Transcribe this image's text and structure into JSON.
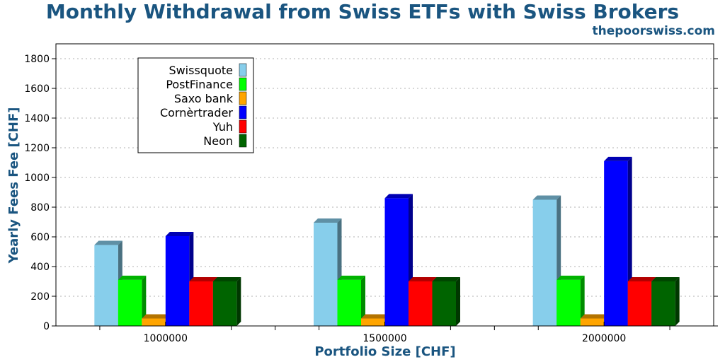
{
  "header": {
    "title": "Monthly Withdrawal from Swiss ETFs with Swiss Brokers",
    "site": "thepoorswiss.com"
  },
  "chart_data": {
    "type": "bar",
    "title": "Monthly Withdrawal from Swiss ETFs with Swiss Brokers",
    "xlabel": "Portfolio Size [CHF]",
    "ylabel": "Yearly Fees Fee [CHF]",
    "categories": [
      "1000000",
      "1500000",
      "2000000"
    ],
    "ylim": [
      0,
      1900
    ],
    "yticks": [
      0,
      200,
      400,
      600,
      800,
      1000,
      1200,
      1400,
      1600,
      1800
    ],
    "grid": true,
    "legend_position": "top-left",
    "series": [
      {
        "name": "Swissquote",
        "color": "#87ceeb",
        "values": [
          545,
          695,
          850
        ]
      },
      {
        "name": "PostFinance",
        "color": "#00ff00",
        "values": [
          310,
          310,
          310
        ]
      },
      {
        "name": "Saxo bank",
        "color": "#ffa500",
        "values": [
          50,
          50,
          50
        ]
      },
      {
        "name": "Cornèrtrader",
        "color": "#0000ff",
        "values": [
          605,
          860,
          1110
        ]
      },
      {
        "name": "Yuh",
        "color": "#ff0000",
        "values": [
          300,
          300,
          300
        ]
      },
      {
        "name": "Neon",
        "color": "#006400",
        "values": [
          300,
          300,
          300
        ]
      }
    ]
  }
}
